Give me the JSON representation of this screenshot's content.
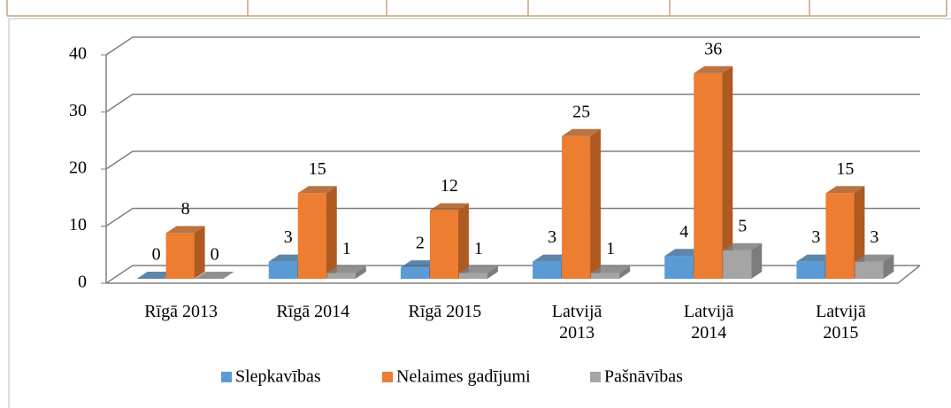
{
  "chart_data": {
    "type": "bar3d",
    "categories": [
      "Rīgā 2013",
      "Rīgā 2014",
      "Rīgā 2015",
      "Latvijā\n2013",
      "Latvijā\n2014",
      "Latvijā\n2015"
    ],
    "series": [
      {
        "name": "Slepkavības",
        "color": "#5b9bd5",
        "side": "#41719c",
        "values": [
          0,
          3,
          2,
          3,
          4,
          3
        ]
      },
      {
        "name": "Nelaimes gadījumi",
        "color": "#ed7d31",
        "side": "#ae5a21",
        "values": [
          8,
          15,
          12,
          25,
          36,
          15
        ]
      },
      {
        "name": "Pašnāvības",
        "color": "#a5a5a5",
        "side": "#7c7c7c",
        "values": [
          0,
          1,
          1,
          1,
          5,
          3
        ]
      }
    ],
    "ylim": [
      0,
      40
    ],
    "yticks": [
      0,
      10,
      20,
      30,
      40
    ],
    "grid": true,
    "legend": "bottom"
  }
}
